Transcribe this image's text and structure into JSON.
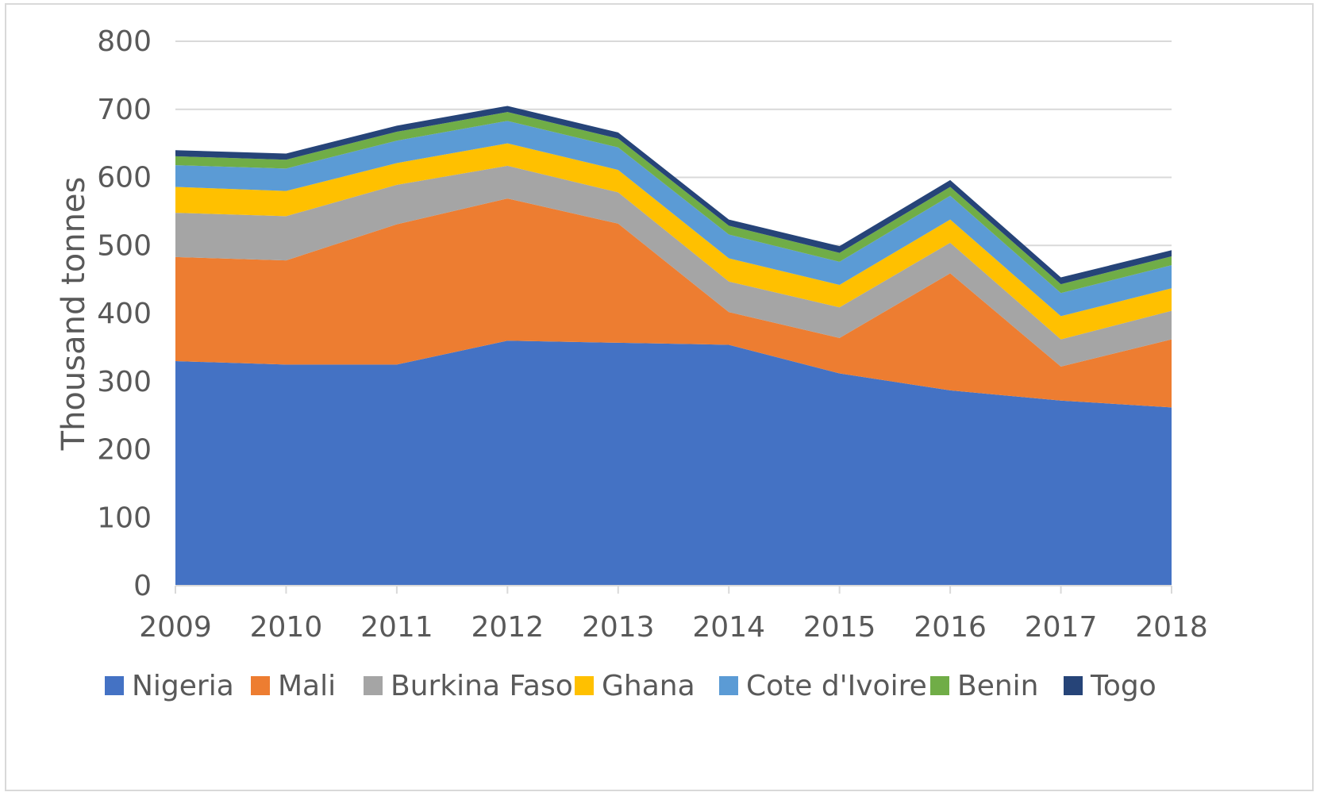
{
  "chart_data": {
    "type": "area",
    "stacked": true,
    "title": "",
    "xlabel": "",
    "ylabel": "Thousand tonnes",
    "ylim": [
      0,
      800
    ],
    "yticks": [
      "0",
      "100",
      "200",
      "300",
      "400",
      "500",
      "600",
      "700",
      "800"
    ],
    "categories": [
      "2009",
      "2010",
      "2011",
      "2012",
      "2013",
      "2014",
      "2015",
      "2016",
      "2017",
      "2018"
    ],
    "grid": "horizontal",
    "legend_position": "bottom",
    "series": [
      {
        "name": "Nigeria",
        "color": "#4472C4",
        "values": [
          330,
          325,
          325,
          360,
          357,
          354,
          312,
          287,
          272,
          262
        ]
      },
      {
        "name": "Mali",
        "color": "#ED7D31",
        "values": [
          153,
          153,
          206,
          209,
          175,
          48,
          52,
          172,
          50,
          100
        ]
      },
      {
        "name": "Burkina Faso",
        "color": "#A5A5A5",
        "values": [
          65,
          65,
          58,
          48,
          46,
          45,
          45,
          45,
          40,
          42
        ]
      },
      {
        "name": "Ghana",
        "color": "#FFC000",
        "values": [
          38,
          37,
          32,
          33,
          33,
          34,
          33,
          34,
          34,
          33
        ]
      },
      {
        "name": "Cote d'Ivoire",
        "color": "#5B9BD5",
        "values": [
          32,
          33,
          33,
          33,
          33,
          35,
          34,
          35,
          34,
          34
        ]
      },
      {
        "name": "Benin",
        "color": "#70AD47",
        "values": [
          13,
          13,
          13,
          13,
          13,
          13,
          13,
          13,
          13,
          13
        ]
      },
      {
        "name": "Togo",
        "color": "#264478",
        "values": [
          9,
          9,
          9,
          9,
          9,
          9,
          10,
          10,
          10,
          9
        ]
      }
    ]
  }
}
